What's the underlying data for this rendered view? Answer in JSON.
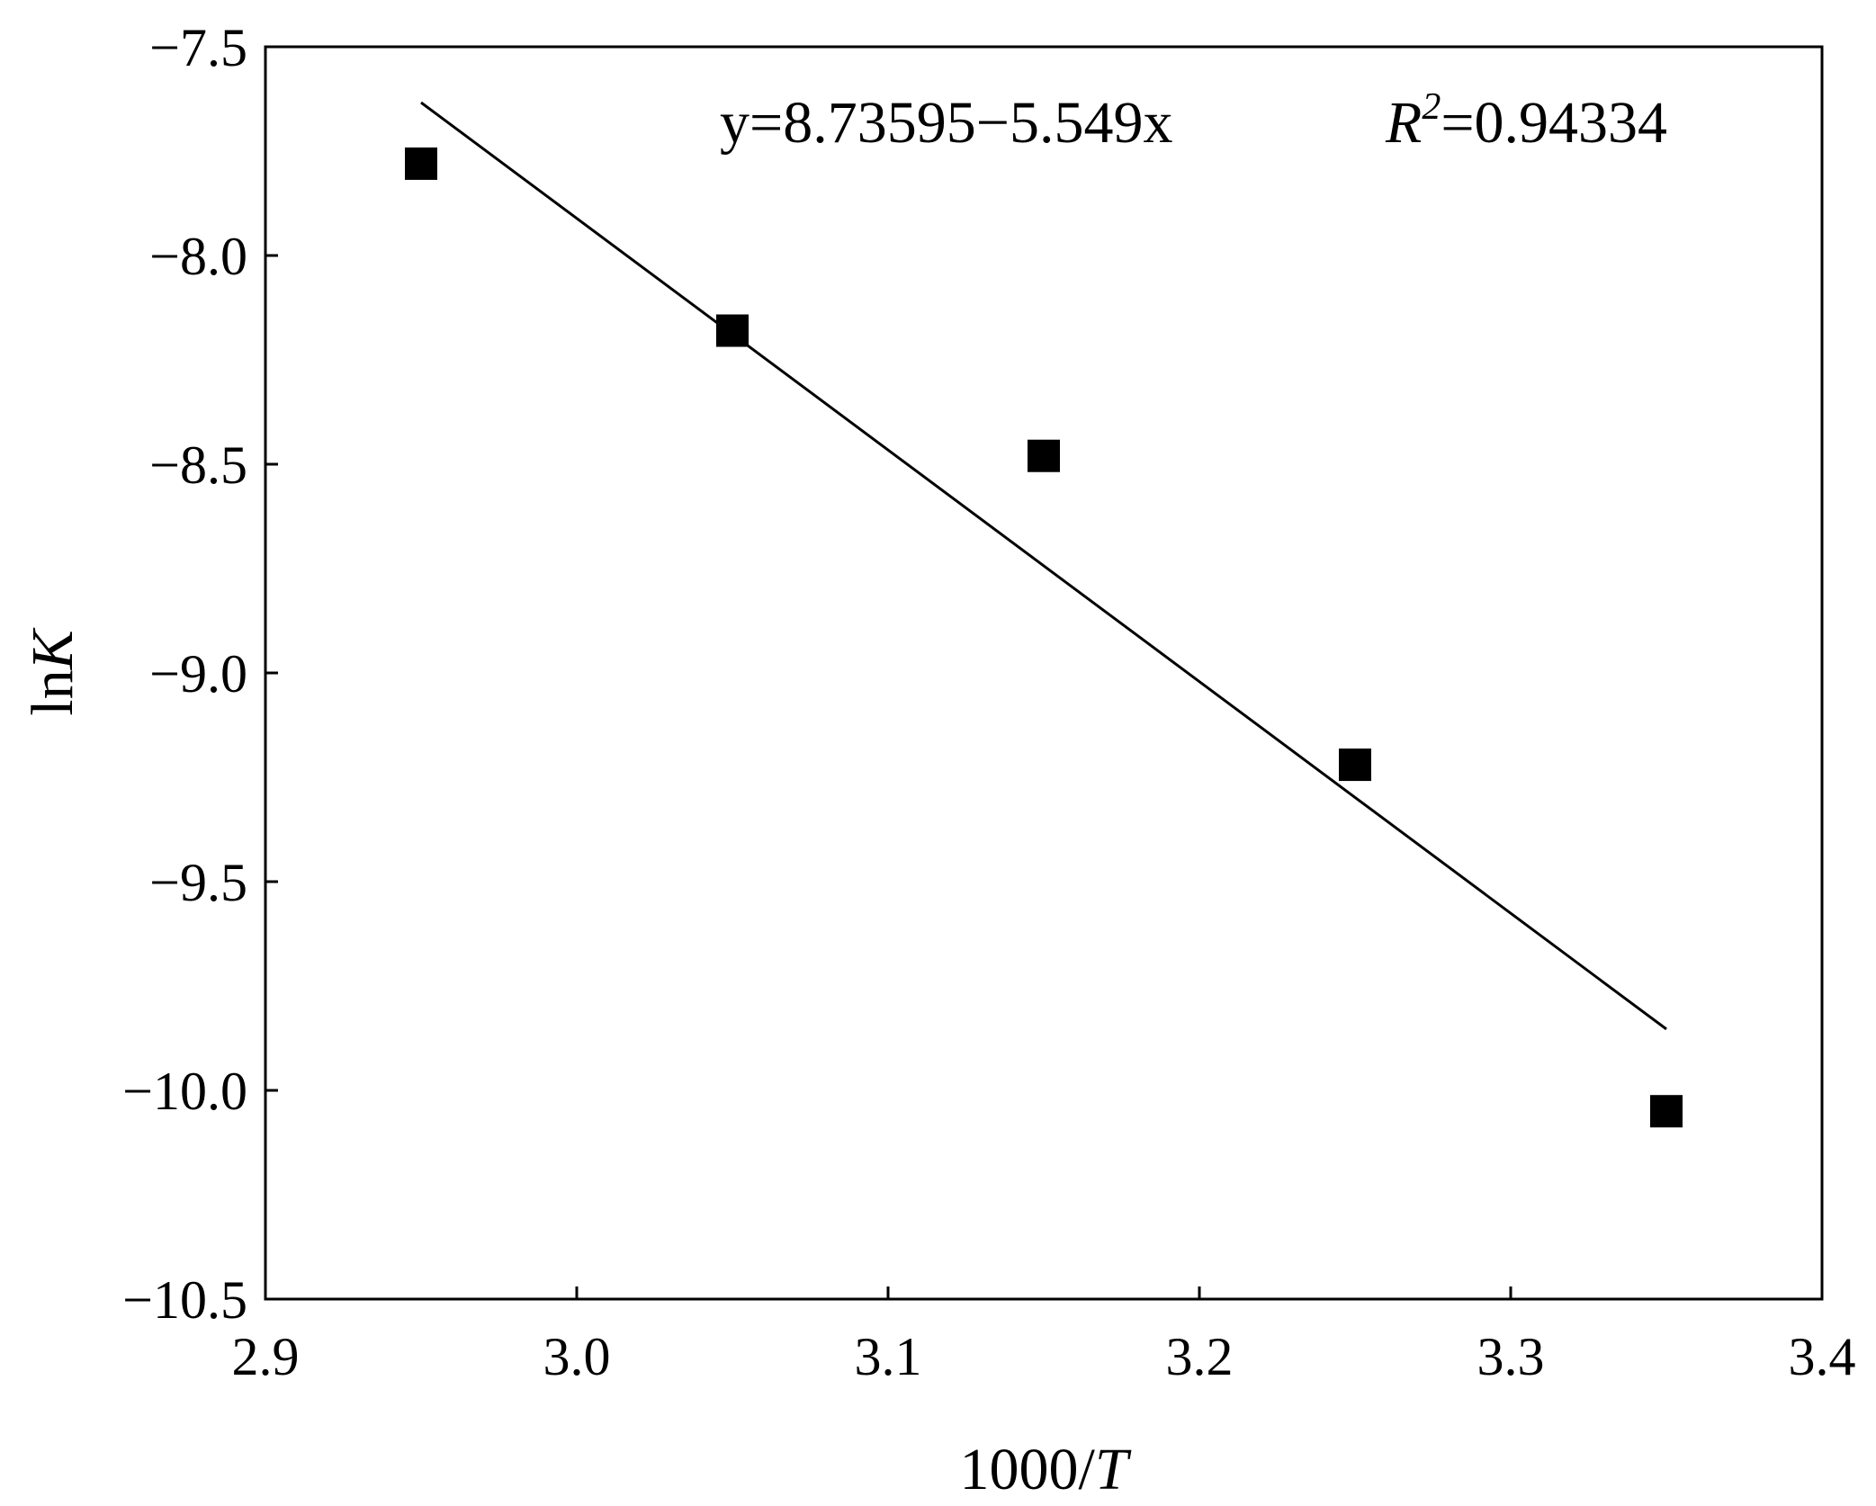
{
  "chart_data": {
    "type": "scatter",
    "xlabel": {
      "prefix": "1000/",
      "var": "T"
    },
    "ylabel": {
      "prefix": "ln",
      "var": "K"
    },
    "xlim": [
      2.9,
      3.4
    ],
    "ylim": [
      -10.5,
      -7.5
    ],
    "x_ticks": [
      2.9,
      3.0,
      3.1,
      3.2,
      3.3,
      3.4
    ],
    "x_tick_labels": [
      "2.9",
      "3.0",
      "3.1",
      "3.2",
      "3.3",
      "3.4"
    ],
    "y_ticks": [
      -7.5,
      -8.0,
      -8.5,
      -9.0,
      -9.5,
      -10.0,
      -10.5
    ],
    "y_tick_labels": [
      "−7.5",
      "−8.0",
      "−8.5",
      "−9.0",
      "−9.5",
      "−10.0",
      "−10.5"
    ],
    "grid": false,
    "series": [
      {
        "marker": "square",
        "color": "#000000",
        "x": [
          2.95,
          3.05,
          3.15,
          3.25,
          3.35
        ],
        "y": [
          -7.78,
          -8.18,
          -8.48,
          -9.22,
          -10.05
        ]
      }
    ],
    "fit": {
      "intercept": 8.73595,
      "slope": -5.549,
      "x_range": [
        2.95,
        3.35
      ],
      "color": "#000000"
    },
    "annotations": {
      "equation": "y=8.73595−5.549x",
      "r2_symbol": "R",
      "r2_exp": "2",
      "r2_value": "=0.94334"
    }
  }
}
